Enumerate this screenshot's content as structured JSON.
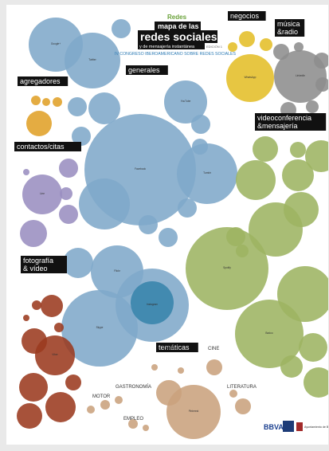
{
  "header": {
    "brand": "Redes",
    "line1": "mapa de las",
    "line2": "redes sociales",
    "line3": "y de mensajería instantánea",
    "edition": "EDICIÓN 1",
    "subtitle": "IV CONGRESO IBEROAMERICANO SOBRE REDES SOCIALES"
  },
  "categories": [
    {
      "key": "negocios",
      "text": "negocios"
    },
    {
      "key": "musica",
      "text": "música\n&radio"
    },
    {
      "key": "generales",
      "text": "generales"
    },
    {
      "key": "agregadores",
      "text": "agregadores"
    },
    {
      "key": "videoconf",
      "text": "videoconferencia\n&mensajería"
    },
    {
      "key": "contactos",
      "text": "contactos/citas"
    },
    {
      "key": "fotografia",
      "text": "fotografía\n& vídeo"
    },
    {
      "key": "tematicas",
      "text": "temáticas"
    }
  ],
  "plain_labels": [
    {
      "key": "cine",
      "text": "CINE"
    },
    {
      "key": "viajes",
      "text": "VIAJES"
    },
    {
      "key": "gastronomia",
      "text": "GASTRONOMÍA"
    },
    {
      "key": "motor",
      "text": "MOTOR"
    },
    {
      "key": "empleo",
      "text": "EMPLEO"
    },
    {
      "key": "literatura",
      "text": "LITERATURA"
    }
  ],
  "footer": {
    "bbva": "BBVA",
    "ayto": "Ayuntamiento de Burgos"
  },
  "colors": {
    "generales": "#7fa9c9",
    "generales_dark": "#3a85ac",
    "negocios": "#e4be28",
    "musica": "#8d8d8d",
    "agregadores": "#e0a128",
    "videoconf": "#9db462",
    "contactos": "#9a8ec0",
    "fotografia": "#9b3a1f",
    "tematicas": "#c9a27d"
  },
  "bubble_labels": [
    "Facebook",
    "Twitter",
    "Google+",
    "Tumblr",
    "YouTube",
    "Flickr",
    "Instagram",
    "Skype",
    "WhatsApp",
    "LinkedIn",
    "Spotify",
    "Badoo",
    "Line",
    "Viber",
    "Pinterest"
  ]
}
